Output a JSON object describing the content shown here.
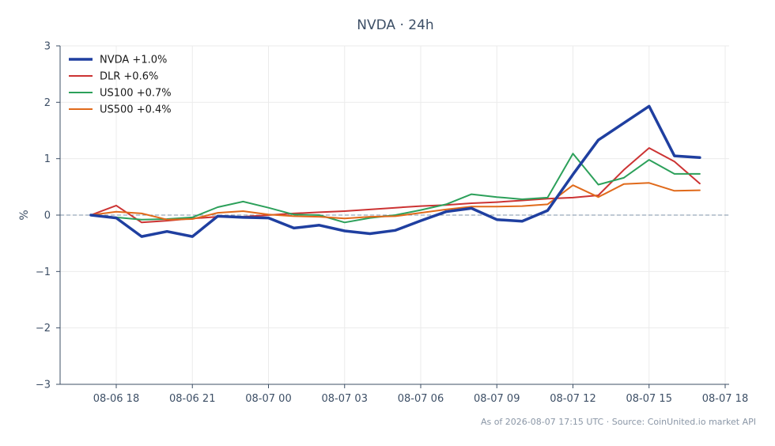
{
  "chart_data": {
    "type": "line",
    "title": "NVDA · 24h",
    "xlabel": "",
    "ylabel": "%",
    "x_ticks": [
      "08-06 18",
      "08-06 21",
      "08-07 00",
      "08-07 03",
      "08-07 06",
      "08-07 09",
      "08-07 12",
      "08-07 15",
      "08-07 18"
    ],
    "xlim": [
      "08-06 16:00",
      "08-07 18:00"
    ],
    "y_ticks": [
      "3",
      "2",
      "1",
      "0",
      "−1",
      "−2",
      "−3"
    ],
    "ylim": [
      -3,
      3
    ],
    "grid": true,
    "zero_line": true,
    "legend_position": "top-left",
    "x": [
      "08-06 17:00",
      "08-06 18:00",
      "08-06 19:00",
      "08-06 20:00",
      "08-06 21:00",
      "08-06 22:00",
      "08-06 23:00",
      "08-07 00:00",
      "08-07 01:00",
      "08-07 02:00",
      "08-07 03:00",
      "08-07 04:00",
      "08-07 05:00",
      "08-07 06:00",
      "08-07 07:00",
      "08-07 08:00",
      "08-07 09:00",
      "08-07 10:00",
      "08-07 11:00",
      "08-07 12:00",
      "08-07 13:00",
      "08-07 14:00",
      "08-07 15:00",
      "08-07 16:00",
      "08-07 17:00"
    ],
    "series": [
      {
        "name": "NVDA +1.0%",
        "color": "#1f3fa0",
        "width": 3.5,
        "x_index": [
          0,
          1,
          2,
          3,
          4,
          5,
          6,
          7,
          8,
          9,
          10,
          11,
          12,
          13,
          14,
          15,
          16,
          17,
          18,
          19,
          20,
          21,
          22,
          23,
          24
        ],
        "values": [
          0.0,
          -0.05,
          -0.38,
          -0.29,
          -0.38,
          -0.02,
          -0.04,
          -0.05,
          -0.23,
          -0.18,
          -0.28,
          -0.33,
          -0.27,
          -0.1,
          0.06,
          0.12,
          -0.08,
          -0.11,
          0.08,
          0.72,
          1.33,
          1.63,
          1.93,
          1.05,
          1.02
        ]
      },
      {
        "name": "DLR +0.6%",
        "color": "#cc3333",
        "width": 2,
        "x_index": [
          0,
          1,
          2,
          3,
          4,
          5,
          6,
          7,
          8,
          9,
          10,
          11,
          12,
          13,
          14,
          15,
          16,
          17,
          18,
          19,
          20,
          21,
          22,
          23,
          24
        ],
        "values": [
          0.0,
          0.17,
          -0.13,
          -0.1,
          -0.06,
          -0.03,
          -0.03,
          0.0,
          0.03,
          0.05,
          0.07,
          0.1,
          0.13,
          0.16,
          0.18,
          0.21,
          0.23,
          0.26,
          0.29,
          0.31,
          0.35,
          0.8,
          1.19,
          0.95,
          0.56
        ]
      },
      {
        "name": "US100 +0.7%",
        "color": "#2ca05a",
        "width": 2,
        "x_index": [
          0,
          1,
          2,
          3,
          4,
          5,
          6,
          7,
          8,
          9,
          10,
          11,
          12,
          13,
          14,
          15,
          16,
          17,
          18,
          19,
          20,
          21,
          22,
          23,
          24
        ],
        "values": [
          0.0,
          -0.04,
          -0.08,
          -0.07,
          -0.04,
          0.14,
          0.24,
          0.13,
          0.01,
          0.0,
          -0.13,
          -0.05,
          0.0,
          0.09,
          0.19,
          0.37,
          0.32,
          0.28,
          0.31,
          1.09,
          0.54,
          0.66,
          0.98,
          0.73,
          0.73
        ]
      },
      {
        "name": "US500 +0.4%",
        "color": "#e06a1b",
        "width": 2,
        "x_index": [
          0,
          1,
          2,
          3,
          4,
          5,
          6,
          7,
          8,
          9,
          10,
          11,
          12,
          13,
          14,
          15,
          16,
          17,
          18,
          19,
          20,
          21,
          22,
          23,
          24
        ],
        "values": [
          0.0,
          0.06,
          0.03,
          -0.08,
          -0.07,
          0.04,
          0.07,
          0.01,
          -0.02,
          -0.03,
          -0.06,
          -0.03,
          -0.02,
          0.04,
          0.1,
          0.15,
          0.15,
          0.16,
          0.19,
          0.53,
          0.32,
          0.55,
          0.57,
          0.43,
          0.44
        ]
      }
    ]
  },
  "footer": "As of 2026-08-07 17:15 UTC · Source: CoinUnited.io market API"
}
